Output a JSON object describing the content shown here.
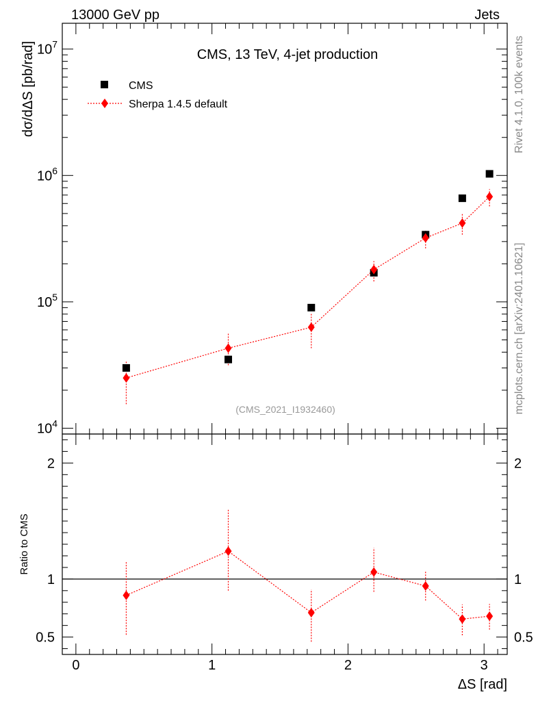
{
  "header": {
    "left_label": "13000 GeV pp",
    "right_label": "Jets"
  },
  "side": {
    "rivet_label": "Rivet 4.1.0,  100k events",
    "source_label": "mcplots.cern.ch [arXiv:2401.10621]"
  },
  "colors": {
    "data": "#000000",
    "mc": "#ff0000",
    "reference_label": "#999999",
    "side_label": "#888888"
  },
  "chart_data": [
    {
      "type": "scatter",
      "title": "CMS, 13 TeV, 4-jet production",
      "ylabel": "dσ/dΔS [pb/rad]",
      "xlabel": "ΔS [rad]",
      "yscale": "log",
      "xlim": [
        -0.1,
        3.17
      ],
      "ylim": [
        9000,
        16000000
      ],
      "yticks": [
        10000,
        100000,
        1000000,
        10000000
      ],
      "ytick_labels": [
        {
          "base": "10",
          "exp": "4"
        },
        {
          "base": "10",
          "exp": "5"
        },
        {
          "base": "10",
          "exp": "6"
        },
        {
          "base": "10",
          "exp": "7"
        }
      ],
      "legend": {
        "placement": "top-left",
        "entries": [
          "CMS",
          "Sherpa 1.4.5 default"
        ]
      },
      "reference_label": "(CMS_2021_I1932460)",
      "series": [
        {
          "name": "CMS",
          "marker": "square",
          "x": [
            0.37,
            1.12,
            1.73,
            2.19,
            2.57,
            2.84,
            3.04
          ],
          "y": [
            30000,
            35000,
            90000,
            170000,
            340000,
            660000,
            1030000
          ]
        },
        {
          "name": "Sherpa 1.4.5 default",
          "marker": "diamond",
          "line": "dotted",
          "x": [
            0.37,
            1.12,
            1.73,
            2.19,
            2.57,
            2.84,
            3.04
          ],
          "y": [
            25000,
            43000,
            63000,
            180000,
            320000,
            420000,
            680000
          ],
          "yerr_low": [
            15500,
            31500,
            43000,
            145000,
            265000,
            340000,
            570000
          ],
          "yerr_high": [
            34000,
            56000,
            82000,
            210000,
            365000,
            500000,
            780000
          ]
        }
      ]
    },
    {
      "type": "scatter",
      "ylabel": "Ratio to CMS",
      "xlabel": "ΔS [rad]",
      "xlim": [
        -0.1,
        3.17
      ],
      "ylim": [
        0.35,
        2.25
      ],
      "yticks": [
        0.5,
        1,
        2
      ],
      "ytick_labels": [
        "0.5",
        "1",
        "2"
      ],
      "xticks": [
        0,
        1,
        2,
        3
      ],
      "xtick_labels": [
        "0",
        "1",
        "2",
        "3"
      ],
      "reference_line": 1,
      "series": [
        {
          "name": "Sherpa 1.4.5 default",
          "marker": "diamond",
          "line": "dotted",
          "x": [
            0.37,
            1.12,
            1.73,
            2.19,
            2.57,
            2.84,
            3.04
          ],
          "y": [
            0.86,
            1.24,
            0.71,
            1.06,
            0.94,
            0.655,
            0.68
          ],
          "yerr_low": [
            0.52,
            0.9,
            0.46,
            0.89,
            0.815,
            0.515,
            0.565
          ],
          "yerr_high": [
            1.15,
            1.6,
            0.91,
            1.27,
            1.07,
            0.78,
            0.785
          ]
        }
      ]
    }
  ]
}
